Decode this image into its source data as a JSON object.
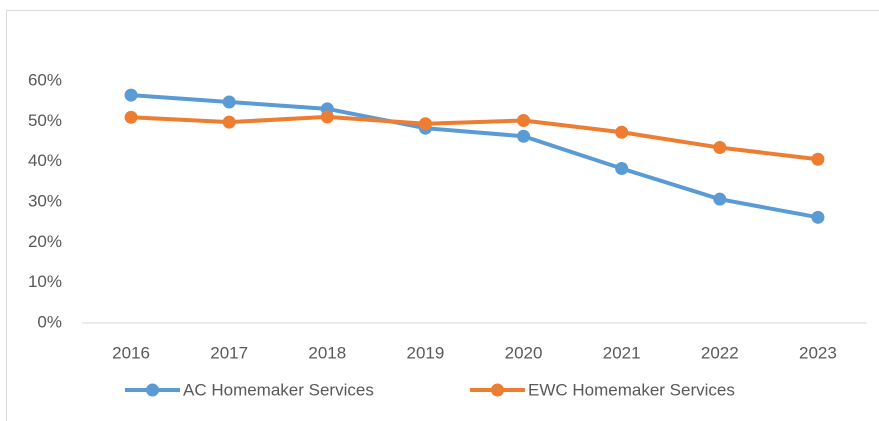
{
  "chart_data": {
    "type": "line",
    "categories": [
      "2016",
      "2017",
      "2018",
      "2019",
      "2020",
      "2021",
      "2022",
      "2023"
    ],
    "series": [
      {
        "name": "AC Homemaker Services",
        "color": "#5b9bd5",
        "values": [
          56.5,
          54.8,
          53.1,
          48.3,
          46.3,
          38.3,
          30.7,
          26.2
        ]
      },
      {
        "name": "EWC Homemaker Services",
        "color": "#ed7d31",
        "values": [
          51.0,
          49.8,
          51.1,
          49.4,
          50.2,
          47.3,
          43.5,
          40.6
        ]
      }
    ],
    "ylim": [
      0,
      60
    ],
    "yticks": [
      {
        "value": 0,
        "label": "0%"
      },
      {
        "value": 10,
        "label": "10%"
      },
      {
        "value": 20,
        "label": "20%"
      },
      {
        "value": 30,
        "label": "30%"
      },
      {
        "value": 40,
        "label": "40%"
      },
      {
        "value": 50,
        "label": "50%"
      },
      {
        "value": 60,
        "label": "60%"
      }
    ],
    "grid": false,
    "legend": "bottom"
  }
}
